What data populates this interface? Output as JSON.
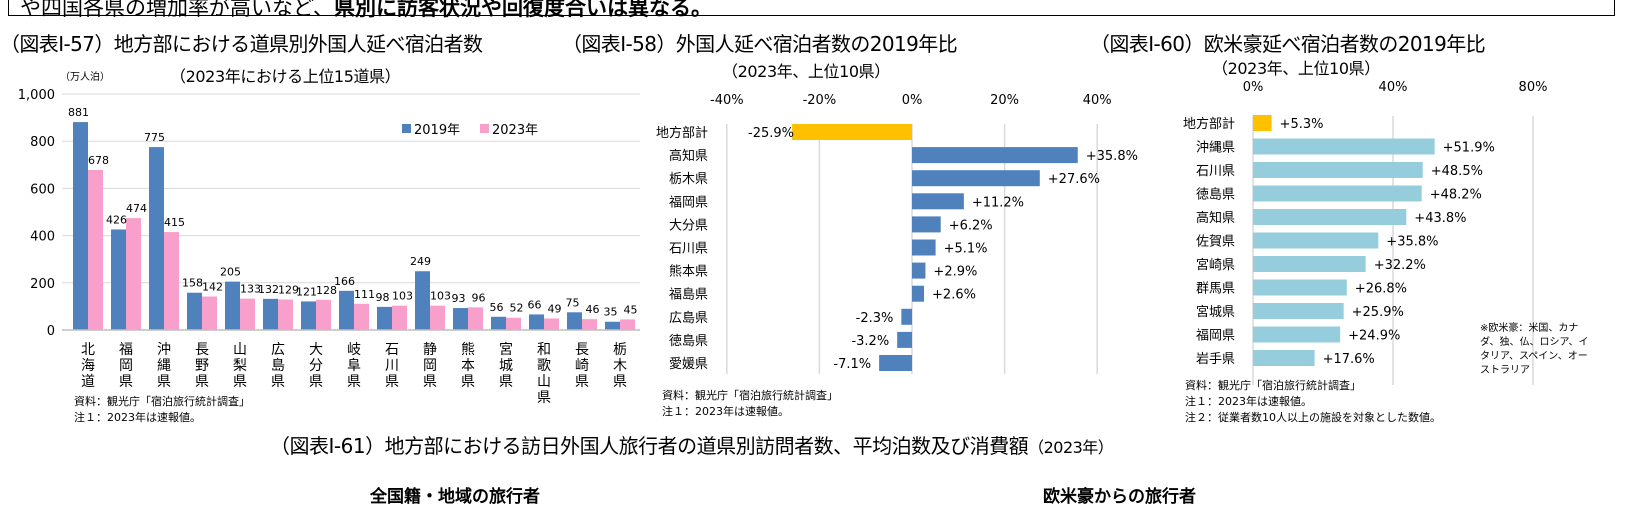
{
  "banner": {
    "text_normal": "や四国各県の増加率が高いなど、",
    "text_bold": "県別に訪客状況や回復度合いは異なる。"
  },
  "titles": {
    "fig57": "（図表Ⅰ-57）地方部における道県別外国人延べ宿泊者数",
    "fig58": "（図表Ⅰ-58）外国人延べ宿泊者数の2019年比",
    "fig60": "（図表Ⅰ-60）欧米豪延べ宿泊者数の2019年比"
  },
  "notes": {
    "fig57": [
      "資料：観光庁「宿泊旅行統計調査」",
      "注１：2023年は速報値。"
    ],
    "fig58": [
      "資料：観光庁「宿泊旅行統計調査」",
      "注１：2023年は速報値。"
    ],
    "fig60": [
      "資料：観光庁「宿泊旅行統計調査」",
      "注１：2023年は速報値。",
      "注２：従業者数10人以上の施設を対象とした数値。"
    ],
    "euro_definition": "※欧米豪：米国、カナダ、独、仏、ロシア、イタリア、スペイン、オーストラリア"
  },
  "bottom": {
    "title": "（図表Ⅰ-61）地方部における訪日外国人旅行者の道県別訪問者数、平均泊数及び消費額",
    "title_year": "（2023年）",
    "section_all": "全国籍・地域の旅行者",
    "section_euro": "欧米豪からの旅行者"
  },
  "colors": {
    "series_2019": "#4f81bd",
    "series_2023": "#f99fcc",
    "total_bar": "#ffc000",
    "bar_blue": "#4f81bd",
    "bar_lightblue": "#96cddd",
    "grid": "#d9d9d9"
  },
  "chart_data": [
    {
      "type": "bar",
      "subtitle": "（2023年における上位15道県）",
      "unit_label": "（万人泊）",
      "categories": [
        "北海道",
        "福岡県",
        "沖縄県",
        "長野県",
        "山梨県",
        "広島県",
        "大分県",
        "岐阜県",
        "石川県",
        "静岡県",
        "熊本県",
        "宮城県",
        "和歌山県",
        "長崎県",
        "栃木県"
      ],
      "series": [
        {
          "name": "2019年",
          "values": [
            881,
            426,
            775,
            158,
            205,
            132,
            121,
            166,
            98,
            249,
            93,
            56,
            66,
            75,
            35
          ]
        },
        {
          "name": "2023年",
          "values": [
            678,
            474,
            415,
            142,
            133,
            129,
            128,
            111,
            103,
            103,
            96,
            52,
            49,
            46,
            45
          ]
        }
      ],
      "ylim": [
        0,
        1000
      ],
      "yticks": [
        "0",
        "200",
        "400",
        "600",
        "800",
        "1,000"
      ],
      "legend": "top-right",
      "grid": true
    },
    {
      "type": "bar",
      "orientation": "horizontal",
      "subtitle": "（2023年、上位10県）",
      "categories": [
        "地方部計",
        "高知県",
        "栃木県",
        "福岡県",
        "大分県",
        "石川県",
        "熊本県",
        "福島県",
        "広島県",
        "徳島県",
        "愛媛県"
      ],
      "values": [
        -25.9,
        35.8,
        27.6,
        11.2,
        6.2,
        5.1,
        2.9,
        2.6,
        -2.3,
        -3.2,
        -7.1
      ],
      "labels": [
        "-25.9%",
        "+35.8%",
        "+27.6%",
        "+11.2%",
        "+6.2%",
        "+5.1%",
        "+2.9%",
        "+2.6%",
        "-2.3%",
        "-3.2%",
        "-7.1%"
      ],
      "xlim": [
        -40,
        40
      ],
      "xticks": [
        "-40%",
        "-20%",
        "0%",
        "20%",
        "40%"
      ],
      "grid": true
    },
    {
      "type": "bar",
      "orientation": "horizontal",
      "subtitle": "（2023年、上位10県）",
      "categories": [
        "地方部計",
        "沖縄県",
        "石川県",
        "徳島県",
        "高知県",
        "佐賀県",
        "宮崎県",
        "群馬県",
        "宮城県",
        "福岡県",
        "岩手県"
      ],
      "values": [
        5.3,
        51.9,
        48.5,
        48.2,
        43.8,
        35.8,
        32.2,
        26.8,
        25.9,
        24.9,
        17.6
      ],
      "labels": [
        "+5.3%",
        "+51.9%",
        "+48.5%",
        "+48.2%",
        "+43.8%",
        "+35.8%",
        "+32.2%",
        "+26.8%",
        "+25.9%",
        "+24.9%",
        "+17.6%"
      ],
      "xlim": [
        0,
        80
      ],
      "xticks": [
        "0%",
        "40%",
        "80%"
      ],
      "grid": true
    }
  ]
}
